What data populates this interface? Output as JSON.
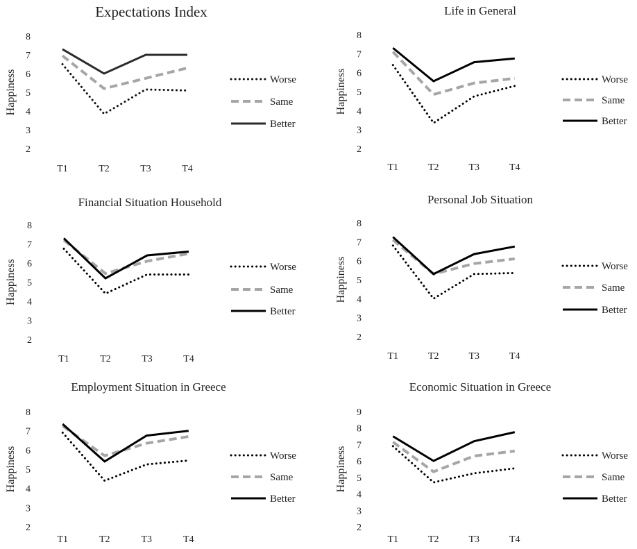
{
  "chart_data": [
    {
      "type": "line",
      "title": "Expectations Index",
      "xlabel": "",
      "ylabel": "Happiness",
      "categories": [
        "T1",
        "T2",
        "T3",
        "T4"
      ],
      "ylim": [
        2,
        8
      ],
      "yticks": [
        2,
        3,
        4,
        5,
        6,
        7,
        8
      ],
      "grid": false,
      "legend": "right",
      "series": [
        {
          "name": "Worse",
          "values": [
            6.5,
            3.85,
            5.15,
            5.1
          ],
          "color": "#111111",
          "style": "dotted"
        },
        {
          "name": "Same",
          "values": [
            6.95,
            5.2,
            5.75,
            6.3
          ],
          "color": "#a6a6a6",
          "style": "dashed"
        },
        {
          "name": "Better",
          "values": [
            7.3,
            6.0,
            7.0,
            7.0
          ],
          "color": "#2b2b2b",
          "style": "solid"
        }
      ]
    },
    {
      "type": "line",
      "title": "Life in General",
      "xlabel": "",
      "ylabel": "Happiness",
      "categories": [
        "T1",
        "T2",
        "T3",
        "T4"
      ],
      "ylim": [
        2,
        8
      ],
      "yticks": [
        2,
        3,
        4,
        5,
        6,
        7,
        8
      ],
      "grid": false,
      "legend": "right",
      "series": [
        {
          "name": "Worse",
          "values": [
            6.4,
            3.35,
            4.75,
            5.3
          ],
          "color": "#000000",
          "style": "dotted"
        },
        {
          "name": "Same",
          "values": [
            7.1,
            4.85,
            5.45,
            5.7
          ],
          "color": "#a6a6a6",
          "style": "dashed"
        },
        {
          "name": "Better",
          "values": [
            7.3,
            5.55,
            6.55,
            6.75
          ],
          "color": "#000000",
          "style": "solid"
        }
      ]
    },
    {
      "type": "line",
      "title": "Financial Situation Household",
      "xlabel": "",
      "ylabel": "Happiness",
      "categories": [
        "T1",
        "T2",
        "T3",
        "T4"
      ],
      "ylim": [
        2,
        8
      ],
      "yticks": [
        2,
        3,
        4,
        5,
        6,
        7,
        8
      ],
      "grid": false,
      "legend": "right",
      "series": [
        {
          "name": "Worse",
          "values": [
            6.75,
            4.4,
            5.4,
            5.4
          ],
          "color": "#000000",
          "style": "dotted"
        },
        {
          "name": "Same",
          "values": [
            7.2,
            5.45,
            6.1,
            6.5
          ],
          "color": "#a6a6a6",
          "style": "dashed"
        },
        {
          "name": "Better",
          "values": [
            7.3,
            5.2,
            6.4,
            6.6
          ],
          "color": "#000000",
          "style": "solid"
        }
      ]
    },
    {
      "type": "line",
      "title": "Personal Job Situation",
      "xlabel": "",
      "ylabel": "Happiness",
      "categories": [
        "T1",
        "T2",
        "T3",
        "T4"
      ],
      "ylim": [
        2,
        8
      ],
      "yticks": [
        2,
        3,
        4,
        5,
        6,
        7,
        8
      ],
      "grid": false,
      "legend": "right",
      "series": [
        {
          "name": "Worse",
          "values": [
            6.8,
            4.0,
            5.3,
            5.35
          ],
          "color": "#000000",
          "style": "dotted"
        },
        {
          "name": "Same",
          "values": [
            7.1,
            5.3,
            5.85,
            6.1
          ],
          "color": "#a6a6a6",
          "style": "dashed"
        },
        {
          "name": "Better",
          "values": [
            7.25,
            5.3,
            6.35,
            6.75
          ],
          "color": "#000000",
          "style": "solid"
        }
      ]
    },
    {
      "type": "line",
      "title": "Employment Situation in Greece",
      "xlabel": "",
      "ylabel": "Happiness",
      "categories": [
        "T1",
        "T2",
        "T3",
        "T4"
      ],
      "ylim": [
        2,
        8
      ],
      "yticks": [
        2,
        3,
        4,
        5,
        6,
        7,
        8
      ],
      "grid": false,
      "legend": "right",
      "series": [
        {
          "name": "Worse",
          "values": [
            6.9,
            4.4,
            5.25,
            5.45
          ],
          "color": "#000000",
          "style": "dotted"
        },
        {
          "name": "Same",
          "values": [
            7.25,
            5.7,
            6.35,
            6.7
          ],
          "color": "#a6a6a6",
          "style": "dashed"
        },
        {
          "name": "Better",
          "values": [
            7.35,
            5.4,
            6.75,
            7.0
          ],
          "color": "#000000",
          "style": "solid"
        }
      ]
    },
    {
      "type": "line",
      "title": "Economic Situation in Greece",
      "xlabel": "",
      "ylabel": "Happiness",
      "categories": [
        "T1",
        "T2",
        "T3",
        "T4"
      ],
      "ylim": [
        2,
        9
      ],
      "yticks": [
        2,
        3,
        4,
        5,
        6,
        7,
        8,
        9
      ],
      "grid": false,
      "legend": "right",
      "series": [
        {
          "name": "Worse",
          "values": [
            6.9,
            4.7,
            5.25,
            5.55
          ],
          "color": "#000000",
          "style": "dotted"
        },
        {
          "name": "Same",
          "values": [
            7.15,
            5.35,
            6.3,
            6.6
          ],
          "color": "#a6a6a6",
          "style": "dashed"
        },
        {
          "name": "Better",
          "values": [
            7.5,
            6.0,
            7.2,
            7.75
          ],
          "color": "#000000",
          "style": "solid"
        }
      ]
    }
  ]
}
